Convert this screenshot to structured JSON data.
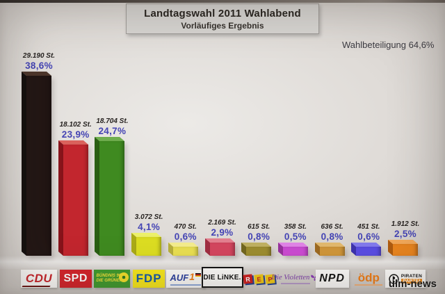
{
  "header": {
    "title": "Landtagswahl 2011 Wahlabend",
    "subtitle": "Vorläufiges Ergebnis"
  },
  "turnout": {
    "text": "Wahlbeteiligung 64,6%"
  },
  "watermark": {
    "text": "ulm-news"
  },
  "chart_data": {
    "type": "bar",
    "title": "Landtagswahl 2011 Wahlabend",
    "subtitle": "Vorläufiges Ergebnis",
    "turnout_percent": 64.6,
    "value_unit": "%",
    "votes_unit": "St.",
    "categories": [
      "CDU",
      "SPD",
      "GRÜNE",
      "FDP",
      "AUF",
      "DIE LINKE",
      "REP",
      "Die Violetten",
      "NPD",
      "ödp",
      "PIRATEN"
    ],
    "values": [
      38.6,
      23.9,
      24.7,
      4.1,
      0.6,
      2.9,
      0.8,
      0.5,
      0.8,
      0.6,
      2.5
    ],
    "votes": [
      29190,
      18102,
      18704,
      3072,
      470,
      2169,
      615,
      358,
      636,
      451,
      1912
    ],
    "parties": [
      {
        "key": "cdu",
        "name": "CDU",
        "votes_label": "29.190 St.",
        "percent_label": "38,6%",
        "percent": 38.6,
        "front": "#221614",
        "top": "#4d362b",
        "side": "#15100e"
      },
      {
        "key": "spd",
        "name": "SPD",
        "votes_label": "18.102 St.",
        "percent_label": "23,9%",
        "percent": 23.9,
        "front": "#c2262e",
        "top": "#da625c",
        "side": "#8e151c"
      },
      {
        "key": "gruene",
        "name": "GRÜNE",
        "votes_label": "18.704 St.",
        "percent_label": "24,7%",
        "percent": 24.7,
        "front": "#3f8a20",
        "top": "#6fae4e",
        "side": "#2c6314"
      },
      {
        "key": "fdp",
        "name": "FDP",
        "votes_label": "3.072 St.",
        "percent_label": "4,1%",
        "percent": 4.1,
        "front": "#dcdd22",
        "top": "#ecf06a",
        "side": "#b2b218"
      },
      {
        "key": "auf",
        "name": "AUF",
        "votes_label": "470 St.",
        "percent_label": "0,6%",
        "percent": 0.6,
        "front": "#e9df52",
        "top": "#f4ec8e",
        "side": "#c0b63e"
      },
      {
        "key": "linke",
        "name": "DIE LINKE",
        "votes_label": "2.169 St.",
        "percent_label": "2,9%",
        "percent": 2.9,
        "front": "#d4465f",
        "top": "#e3808f",
        "side": "#a73045"
      },
      {
        "key": "rep",
        "name": "REP",
        "votes_label": "615 St.",
        "percent_label": "0,8%",
        "percent": 0.8,
        "front": "#9d8d30",
        "top": "#c0b162",
        "side": "#776b20"
      },
      {
        "key": "violetten",
        "name": "Die Violetten",
        "votes_label": "358 St.",
        "percent_label": "0,5%",
        "percent": 0.5,
        "front": "#cb4cd2",
        "top": "#e085e6",
        "side": "#9d34a2"
      },
      {
        "key": "npd",
        "name": "NPD",
        "votes_label": "636 St.",
        "percent_label": "0,8%",
        "percent": 0.8,
        "front": "#d0963a",
        "top": "#e2b96d",
        "side": "#a46e23"
      },
      {
        "key": "oedp",
        "name": "ödp",
        "votes_label": "451 St.",
        "percent_label": "0,6%",
        "percent": 0.6,
        "front": "#5a4de2",
        "top": "#837aec",
        "side": "#4034b4"
      },
      {
        "key": "piraten",
        "name": "PIRATEN",
        "votes_label": "1.912 St.",
        "percent_label": "2,5%",
        "percent": 2.5,
        "front": "#e8841e",
        "top": "#f2a859",
        "side": "#b66011"
      }
    ]
  },
  "logos": {
    "cdu": {
      "label": "CDU"
    },
    "spd": {
      "label": "SPD"
    },
    "gruene": {
      "line1": "BÜNDNIS 90",
      "line2": "DIE GRÜNEN"
    },
    "fdp": {
      "label": "FDP"
    },
    "auf": {
      "label": "AUF",
      "suffix": "1"
    },
    "linke": {
      "label": "DIE LiNKE."
    },
    "rep": {
      "l1": "R",
      "l2": "E",
      "l3": "P"
    },
    "violetten": {
      "label": "Die Violetten"
    },
    "npd": {
      "label": "NPD"
    },
    "oedp": {
      "label": "ödp"
    },
    "piraten": {
      "line1": "PIRATEN",
      "line2": "PARTEI"
    }
  }
}
